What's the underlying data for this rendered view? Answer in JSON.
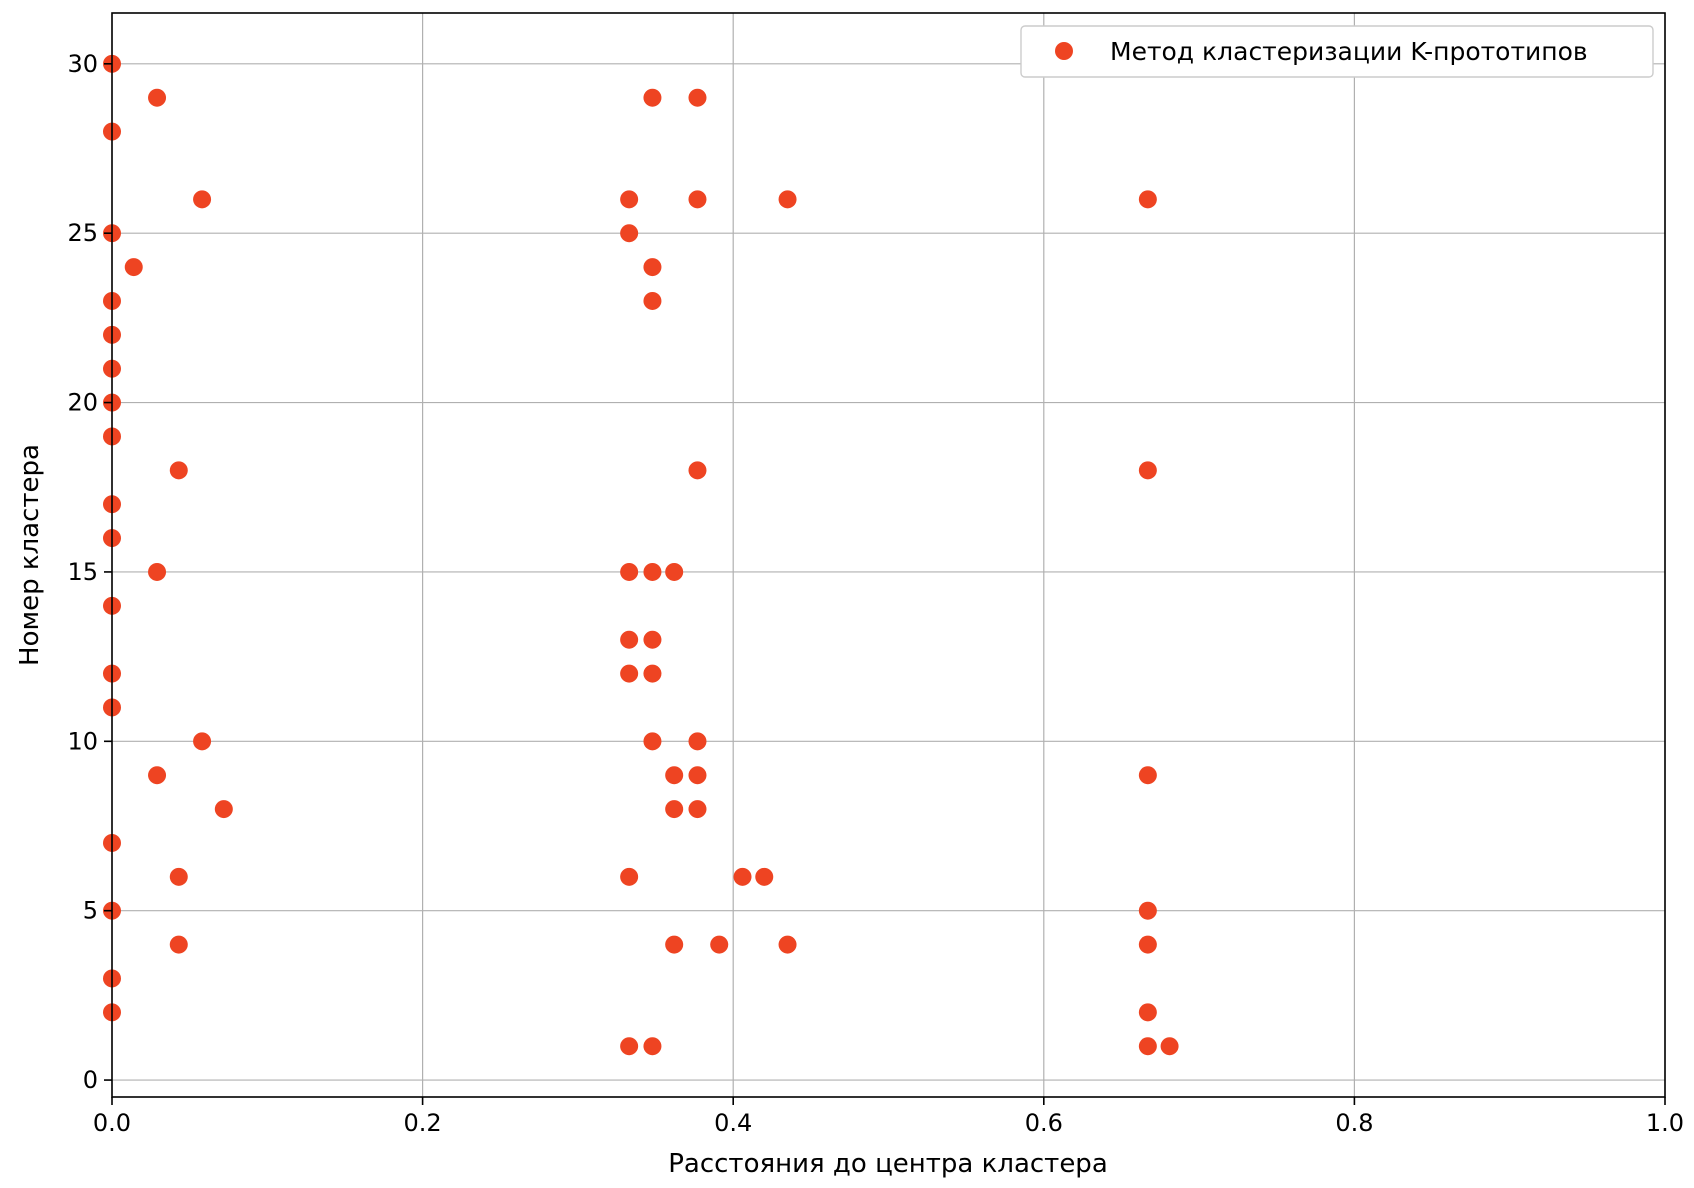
{
  "chart_data": {
    "type": "scatter",
    "title": "",
    "xlabel": "Расстояния до центра кластера",
    "ylabel": "Номер кластера",
    "xlim": [
      0,
      1
    ],
    "ylim": [
      -0.5,
      31.5
    ],
    "xticks": [
      0.0,
      0.2,
      0.4,
      0.6,
      0.8,
      1.0
    ],
    "xtick_labels": [
      "0.0",
      "0.2",
      "0.4",
      "0.6",
      "0.8",
      "1.0"
    ],
    "yticks": [
      0,
      5,
      10,
      15,
      20,
      25,
      30
    ],
    "ytick_labels": [
      "0",
      "5",
      "10",
      "15",
      "20",
      "25",
      "30"
    ],
    "grid": true,
    "legend_position": "top-right",
    "series": [
      {
        "name": "Метод кластеризации K-прототипов",
        "color": "#ee4422",
        "marker": "circle",
        "points": [
          [
            0.0,
            30
          ],
          [
            0.0,
            28
          ],
          [
            0.0,
            25
          ],
          [
            0.0,
            23
          ],
          [
            0.0,
            22
          ],
          [
            0.0,
            21
          ],
          [
            0.0,
            20
          ],
          [
            0.0,
            19
          ],
          [
            0.0,
            17
          ],
          [
            0.0,
            16
          ],
          [
            0.0,
            14
          ],
          [
            0.0,
            12
          ],
          [
            0.0,
            11
          ],
          [
            0.0,
            7
          ],
          [
            0.0,
            5
          ],
          [
            0.0,
            3
          ],
          [
            0.0,
            2
          ],
          [
            0.029,
            29
          ],
          [
            0.029,
            15
          ],
          [
            0.029,
            9
          ],
          [
            0.014,
            24
          ],
          [
            0.058,
            26
          ],
          [
            0.058,
            10
          ],
          [
            0.043,
            18
          ],
          [
            0.043,
            6
          ],
          [
            0.043,
            4
          ],
          [
            0.072,
            8
          ],
          [
            0.333,
            26
          ],
          [
            0.333,
            25
          ],
          [
            0.333,
            15
          ],
          [
            0.333,
            13
          ],
          [
            0.333,
            12
          ],
          [
            0.333,
            6
          ],
          [
            0.333,
            1
          ],
          [
            0.348,
            29
          ],
          [
            0.348,
            24
          ],
          [
            0.348,
            23
          ],
          [
            0.348,
            15
          ],
          [
            0.348,
            13
          ],
          [
            0.348,
            12
          ],
          [
            0.348,
            10
          ],
          [
            0.348,
            1
          ],
          [
            0.362,
            15
          ],
          [
            0.362,
            9
          ],
          [
            0.362,
            8
          ],
          [
            0.362,
            4
          ],
          [
            0.377,
            29
          ],
          [
            0.377,
            26
          ],
          [
            0.377,
            18
          ],
          [
            0.377,
            10
          ],
          [
            0.377,
            9
          ],
          [
            0.377,
            8
          ],
          [
            0.391,
            4
          ],
          [
            0.406,
            6
          ],
          [
            0.42,
            6
          ],
          [
            0.435,
            26
          ],
          [
            0.435,
            4
          ],
          [
            0.667,
            26
          ],
          [
            0.667,
            18
          ],
          [
            0.667,
            9
          ],
          [
            0.667,
            5
          ],
          [
            0.667,
            4
          ],
          [
            0.667,
            2
          ],
          [
            0.667,
            1
          ],
          [
            0.681,
            1
          ]
        ]
      }
    ]
  }
}
